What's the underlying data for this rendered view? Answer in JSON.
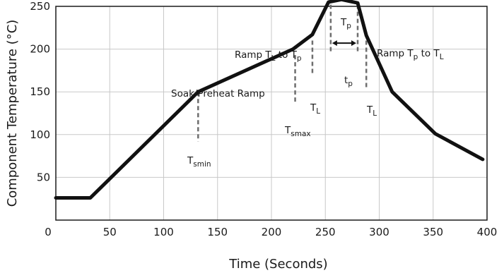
{
  "chart_data": {
    "type": "line",
    "title": "",
    "xlabel": "Time (Seconds)",
    "ylabel": "Component Temperature (°C)",
    "xlim": [
      0,
      400
    ],
    "ylim": [
      0,
      250
    ],
    "xticks": [
      0,
      50,
      100,
      150,
      200,
      250,
      300,
      350,
      400
    ],
    "yticks": [
      50,
      100,
      150,
      200,
      250
    ],
    "ytick_top": 250,
    "grid": true,
    "series": [
      {
        "x": [
          0,
          32,
          132,
          220,
          238,
          253,
          265,
          280,
          288,
          312,
          352,
          396
        ],
        "y": [
          26,
          26,
          150,
          200,
          217,
          255,
          258,
          254,
          216,
          150,
          101,
          71
        ]
      }
    ],
    "markers": [
      {
        "key": "tsmin",
        "x": 132,
        "y_from": 150,
        "y_to": 92
      },
      {
        "key": "tsmax",
        "x": 222,
        "y_from": 193,
        "y_to": 138
      },
      {
        "key": "tl_left",
        "x": 238,
        "y_from": 210,
        "y_to": 170
      },
      {
        "key": "tl_right",
        "x": 288,
        "y_from": 210,
        "y_to": 155
      },
      {
        "key": "tp_left",
        "x": 255,
        "y_from": 252,
        "y_to": 195
      },
      {
        "key": "tp_right",
        "x": 280,
        "y_from": 252,
        "y_to": 195
      }
    ],
    "tp_arrow": {
      "x1": 255,
      "x2": 280,
      "y": 207
    },
    "annotations": {
      "soak_preheat": "Soak/Preheat Ramp",
      "ramp_up": {
        "main": "Ramp T",
        "sub1": "L",
        "mid": " to T",
        "sub2": "p"
      },
      "ramp_down": {
        "main": "Ramp T",
        "sub1": "p",
        "mid": " to T",
        "sub2": "L"
      },
      "tsmin": {
        "main": "T",
        "sub": "smin"
      },
      "tsmax": {
        "main": "T",
        "sub": "smax"
      },
      "tl_left": {
        "main": "T",
        "sub": "L"
      },
      "tl_right": {
        "main": "T",
        "sub": "L"
      },
      "tp_peak": {
        "main": "T",
        "sub": "p"
      },
      "tp_span": {
        "main": "t",
        "sub": "p"
      }
    }
  }
}
